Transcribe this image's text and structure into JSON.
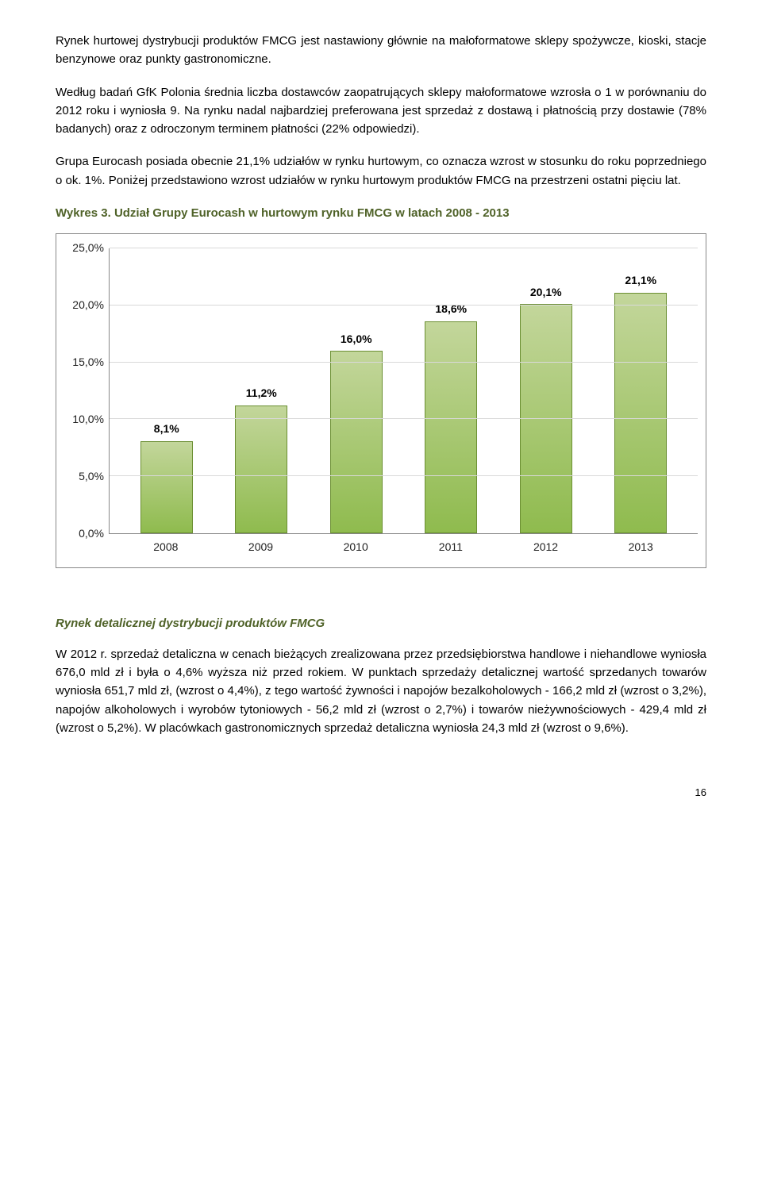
{
  "paragraphs": {
    "p1": "Rynek hurtowej dystrybucji produktów FMCG jest nastawiony głównie na małoformatowe sklepy spożywcze, kioski, stacje benzynowe oraz punkty gastronomiczne.",
    "p2": "Według badań GfK Polonia średnia liczba dostawców zaopatrujących sklepy małoformatowe wzrosła o 1 w porównaniu do 2012 roku i wyniosła 9. Na rynku nadal najbardziej preferowana jest sprzedaż z dostawą i płatnością przy dostawie (78% badanych) oraz z odroczonym terminem płatności (22% odpowiedzi).",
    "p3": "Grupa Eurocash posiada obecnie 21,1% udziałów w rynku hurtowym, co oznacza wzrost w stosunku do roku poprzedniego o ok. 1%. Poniżej przedstawiono wzrost udziałów w rynku hurtowym produktów FMCG na przestrzeni ostatni pięciu lat.",
    "p4": "W 2012 r. sprzedaż detaliczna w cenach bieżących zrealizowana przez przedsiębiorstwa handlowe i niehandlowe wyniosła 676,0 mld zł i była o 4,6% wyższa niż przed rokiem. W punktach sprzedaży detalicznej wartość sprzedanych towarów wyniosła 651,7 mld zł, (wzrost o 4,4%), z tego wartość żywności i napojów bezalkoholowych - 166,2 mld zł (wzrost o 3,2%), napojów alkoholowych i wyrobów tytoniowych - 56,2 mld zł (wzrost o 2,7%) i towarów nieżywnościowych - 429,4 mld zł (wzrost o 5,2%). W placówkach gastronomicznych sprzedaż detaliczna wyniosła 24,3 mld zł (wzrost o 9,6%)."
  },
  "chart_title": "Wykres 3. Udział Grupy Eurocash w hurtowym rynku FMCG w latach 2008 - 2013",
  "section_title": "Rynek detalicznej dystrybucji produktów FMCG",
  "chart": {
    "type": "bar",
    "categories": [
      "2008",
      "2009",
      "2010",
      "2011",
      "2012",
      "2013"
    ],
    "values": [
      8.1,
      11.2,
      16.0,
      18.6,
      20.1,
      21.1
    ],
    "value_labels": [
      "8,1%",
      "11,2%",
      "16,0%",
      "18,6%",
      "20,1%",
      "21,1%"
    ],
    "ymin": 0.0,
    "ymax": 25.0,
    "ytick_step": 5.0,
    "ytick_labels": [
      "0,0%",
      "5,0%",
      "10,0%",
      "15,0%",
      "20,0%",
      "25,0%"
    ],
    "bar_fill_top": "#c3d69b",
    "bar_fill_bottom": "#8fbb4e",
    "bar_border": "#6b8f32",
    "grid_color": "#d9d9d9",
    "axis_color": "#888888",
    "background_color": "#ffffff",
    "label_fontsize": 14,
    "label_fontweight": "bold",
    "title_color": "#4f6228"
  },
  "page_number": "16"
}
